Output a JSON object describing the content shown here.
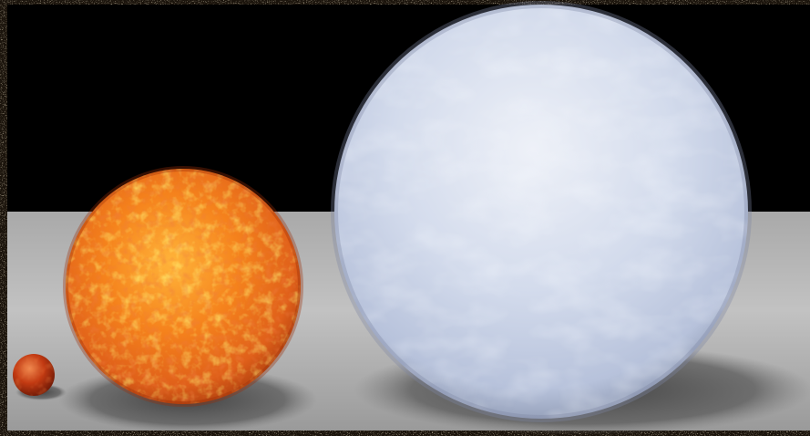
{
  "scene": {
    "colors": {
      "sky": "#000000",
      "frame": "#1b140c",
      "floor_light": "#bdbdbd",
      "floor_dark": "#8e8e8e",
      "shadow": "#4a4a4a",
      "tiny_sphere": "#c23a12",
      "medium_sphere_core": "#ffd23a",
      "medium_sphere_mid": "#f07a18",
      "medium_sphere_edge": "#b8320c",
      "large_sphere_light": "#eef2fb",
      "large_sphere_mid": "#c7d1e7",
      "large_sphere_edge": "#8f9bb8"
    },
    "objects": [
      "tiny-red-sphere",
      "orange-sphere",
      "white-blue-sphere"
    ]
  }
}
